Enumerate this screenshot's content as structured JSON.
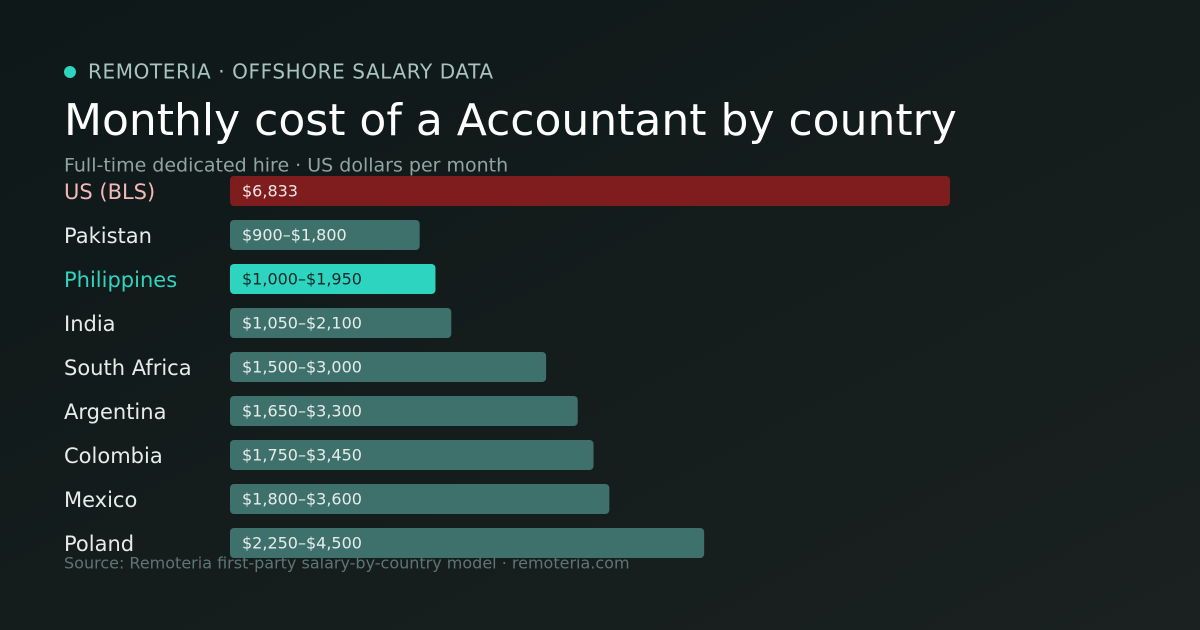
{
  "chart_data": {
    "type": "bar",
    "orientation": "horizontal",
    "eyebrow": "REMOTERIA · OFFSHORE SALARY DATA",
    "title": "Monthly cost of a Accountant by country",
    "subtitle": "Full-time dedicated hire · US dollars per month",
    "source": "Source: Remoteria first-party salary-by-country model · remoteria.com",
    "categories": [
      "US (BLS)",
      "Pakistan",
      "Philippines",
      "India",
      "South Africa",
      "Argentina",
      "Colombia",
      "Mexico",
      "Poland"
    ],
    "low": [
      null,
      900,
      1000,
      1050,
      1500,
      1650,
      1750,
      1800,
      2250
    ],
    "values": [
      6833,
      1800,
      1950,
      2100,
      3000,
      3300,
      3450,
      3600,
      4500
    ],
    "value_labels": [
      "$6,833",
      "$900–$1,800",
      "$1,000–$1,950",
      "$1,050–$2,100",
      "$1,500–$3,000",
      "$1,650–$3,300",
      "$1,750–$3,450",
      "$1,800–$3,600",
      "$2,250–$4,500"
    ],
    "colors": [
      "#7e1c1e",
      "#3f716c",
      "#2dd4bf",
      "#3f716c",
      "#3f716c",
      "#3f716c",
      "#3f716c",
      "#3f716c",
      "#3f716c"
    ],
    "label_colors": [
      "#f4b8b8",
      "#e6ecea",
      "#2dd4bf",
      "#e6ecea",
      "#e6ecea",
      "#e6ecea",
      "#e6ecea",
      "#e6ecea",
      "#e6ecea"
    ],
    "value_label_colors": [
      "#f3e6e6",
      "#e6ecea",
      "#0c2a27",
      "#e6ecea",
      "#e6ecea",
      "#e6ecea",
      "#e6ecea",
      "#e6ecea",
      "#e6ecea"
    ]
  }
}
